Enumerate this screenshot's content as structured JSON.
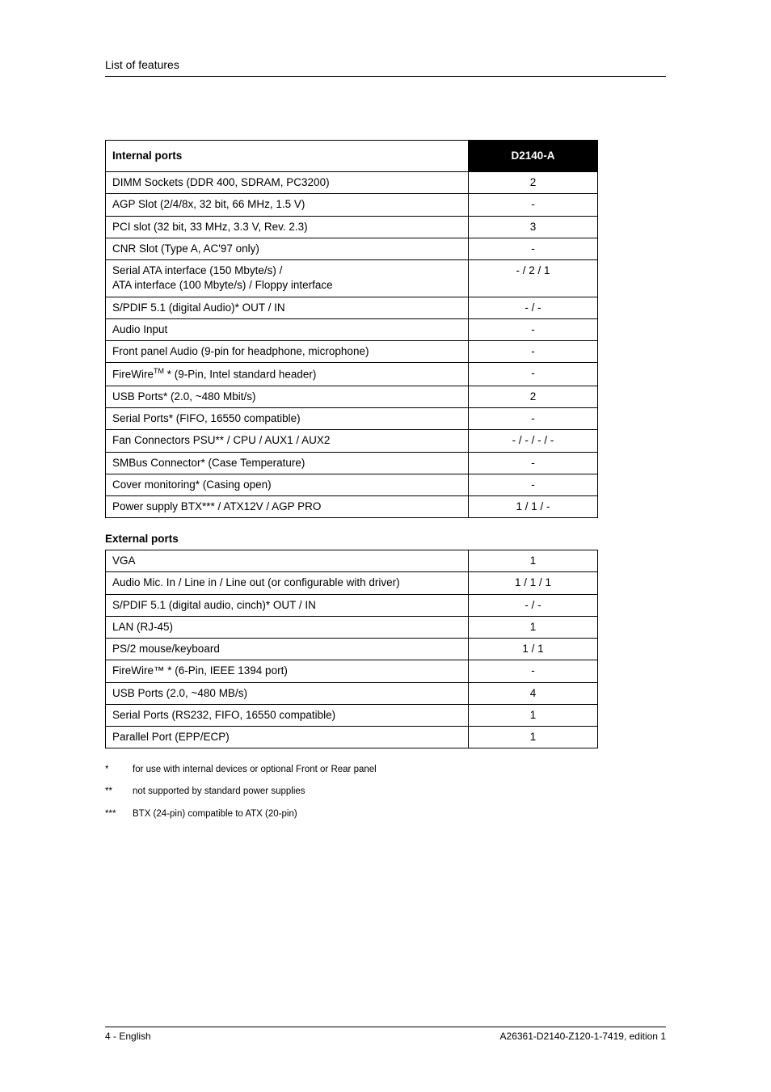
{
  "header": {
    "title": "List of features"
  },
  "table1": {
    "head_label": "Internal ports",
    "head_model": "D2140-A",
    "rows": [
      {
        "label": "DIMM Sockets (DDR 400, SDRAM, PC3200)",
        "val": "2"
      },
      {
        "label": "AGP Slot (2/4/8x, 32 bit, 66 MHz, 1.5 V)",
        "val": "-"
      },
      {
        "label": "PCI slot (32 bit, 33 MHz, 3.3 V, Rev. 2.3)",
        "val": "3"
      },
      {
        "label": "CNR Slot (Type A, AC'97 only)",
        "val": "-"
      },
      {
        "label": "Serial ATA interface (150 Mbyte/s) /\nATA interface (100 Mbyte/s) / Floppy interface",
        "val": "- / 2 / 1"
      },
      {
        "label": "S/PDIF 5.1 (digital Audio)* OUT / IN",
        "val": "- / -"
      },
      {
        "label": "Audio Input",
        "val": "-"
      },
      {
        "label": "Front panel Audio (9-pin for headphone, microphone)",
        "val": "-"
      },
      {
        "label_html": "FireWire<sup>TM</sup> * (9-Pin, Intel standard header)",
        "val": "-"
      },
      {
        "label": "USB Ports* (2.0, ~480 Mbit/s)",
        "val": "2"
      },
      {
        "label": "Serial Ports* (FIFO, 16550 compatible)",
        "val": "-"
      },
      {
        "label": "Fan Connectors PSU** / CPU / AUX1 / AUX2",
        "val": "- / - / - / -"
      },
      {
        "label": "SMBus Connector* (Case Temperature)",
        "val": "-"
      },
      {
        "label": "Cover monitoring* (Casing open)",
        "val": "-"
      },
      {
        "label": "Power supply BTX*** / ATX12V / AGP PRO",
        "val": "1 / 1 / -"
      }
    ]
  },
  "table2": {
    "subhead": "External ports",
    "rows": [
      {
        "label": "VGA",
        "val": "1"
      },
      {
        "label": "Audio Mic. In / Line in / Line out (or configurable with driver)",
        "val": "1 / 1 / 1"
      },
      {
        "label": "S/PDIF 5.1 (digital audio, cinch)* OUT / IN",
        "val": "- / -"
      },
      {
        "label": "LAN (RJ-45)",
        "val": "1"
      },
      {
        "label": "PS/2 mouse/keyboard",
        "val": "1 / 1"
      },
      {
        "label": "FireWire™ * (6-Pin, IEEE 1394 port)",
        "val": "-"
      },
      {
        "label": "USB Ports (2.0, ~480 MB/s)",
        "val": "4"
      },
      {
        "label": "Serial Ports (RS232, FIFO, 16550 compatible)",
        "val": "1"
      },
      {
        "label": "Parallel Port (EPP/ECP)",
        "val": "1"
      }
    ]
  },
  "footnotes": [
    {
      "mark": "*",
      "text": "for use with internal devices or optional Front or Rear panel"
    },
    {
      "mark": "**",
      "text": "not supported by standard power supplies"
    },
    {
      "mark": "***",
      "text": "BTX (24-pin) compatible to ATX (20-pin)"
    }
  ],
  "footer": {
    "left": "4 - English",
    "right": "A26361-D2140-Z120-1-7419, edition 1"
  }
}
